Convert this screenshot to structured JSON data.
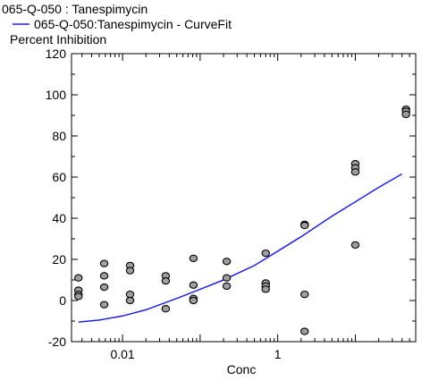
{
  "chart_data": {
    "type": "scatter",
    "title": "065-Q-050  : Tanespimycin",
    "xlabel": "Conc",
    "ylabel": "Percent Inhibition",
    "x_scale": "log",
    "xlim": [
      0.0022,
      60
    ],
    "ylim": [
      -20,
      120
    ],
    "y_ticks": [
      -20,
      0,
      20,
      40,
      60,
      80,
      100,
      120
    ],
    "x_ticks": [
      0.01,
      1
    ],
    "x_tick_labels": [
      "0.01",
      "1"
    ],
    "grid": false,
    "legend_position": "top-left",
    "colors": {
      "fit_line": "#2222dd",
      "point_fill": "#9e9e9e",
      "point_stroke": "#000000",
      "axis": "#000000"
    },
    "series": [
      {
        "name": "065-Q-050:Tanespimycin - CurveFit",
        "kind": "line",
        "x": [
          0.0027,
          0.005,
          0.01,
          0.02,
          0.05,
          0.1,
          0.2,
          0.5,
          1,
          2,
          5,
          10,
          20,
          40
        ],
        "y": [
          -10.5,
          -9.5,
          -7.5,
          -4.5,
          1,
          5.5,
          10,
          17,
          24,
          31,
          41,
          48,
          55,
          61.5
        ]
      },
      {
        "kind": "scatter",
        "points": [
          [
            0.0027,
            11
          ],
          [
            0.0027,
            5
          ],
          [
            0.0027,
            3
          ],
          [
            0.0027,
            2
          ],
          [
            0.0058,
            18
          ],
          [
            0.0058,
            12
          ],
          [
            0.0058,
            6.5
          ],
          [
            0.0058,
            -2
          ],
          [
            0.0125,
            17
          ],
          [
            0.0125,
            14.5
          ],
          [
            0.0125,
            3
          ],
          [
            0.0125,
            0
          ],
          [
            0.036,
            12
          ],
          [
            0.036,
            9.5
          ],
          [
            0.036,
            -4
          ],
          [
            0.082,
            20.5
          ],
          [
            0.082,
            7.5
          ],
          [
            0.082,
            1
          ],
          [
            0.082,
            0
          ],
          [
            0.22,
            19
          ],
          [
            0.22,
            11
          ],
          [
            0.22,
            7
          ],
          [
            0.7,
            23
          ],
          [
            0.7,
            8.5
          ],
          [
            0.7,
            7
          ],
          [
            0.7,
            5.5
          ],
          [
            2.22,
            37
          ],
          [
            2.22,
            36.5
          ],
          [
            2.22,
            3
          ],
          [
            2.22,
            -15
          ],
          [
            10,
            66.5
          ],
          [
            10,
            64.5
          ],
          [
            10,
            62.5
          ],
          [
            10,
            27
          ],
          [
            45,
            93
          ],
          [
            45,
            92
          ],
          [
            45,
            90.5
          ]
        ]
      }
    ]
  }
}
